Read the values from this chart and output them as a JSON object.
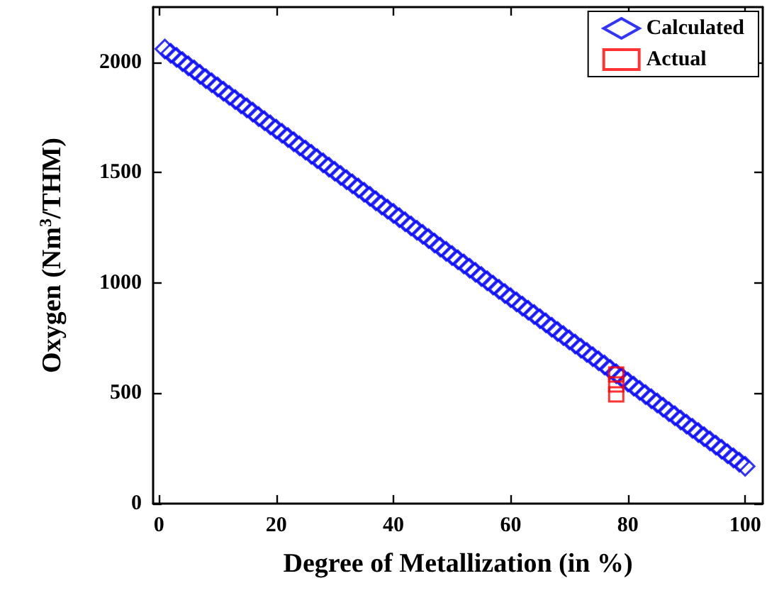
{
  "chart_data": {
    "type": "scatter",
    "xlabel": "Degree of Metallization (in %)",
    "ylabel": "Oxygen (Nm$^{3}$/THM)",
    "xlim": [
      -1,
      103
    ],
    "xticks": [
      0,
      20,
      40,
      60,
      80,
      100
    ],
    "ylim": [
      0,
      2250
    ],
    "yticks": [
      0,
      500,
      1000,
      1500,
      2000
    ],
    "grid": false,
    "legend": "top right",
    "series": [
      {
        "name": "Calculated",
        "color": "#0000ff",
        "marker": "diamond",
        "x": [
          1,
          2,
          3,
          4,
          5,
          6,
          7,
          8,
          9,
          10,
          11,
          12,
          13,
          14,
          15,
          16,
          17,
          18,
          19,
          20,
          21,
          22,
          23,
          24,
          25,
          26,
          27,
          28,
          29,
          30,
          31,
          32,
          33,
          34,
          35,
          36,
          37,
          38,
          39,
          40,
          41,
          42,
          43,
          44,
          45,
          46,
          47,
          48,
          49,
          50,
          51,
          52,
          53,
          54,
          55,
          56,
          57,
          58,
          59,
          60,
          61,
          62,
          63,
          64,
          65,
          66,
          67,
          68,
          69,
          70,
          71,
          72,
          73,
          74,
          75,
          76,
          77,
          78,
          79,
          80,
          81,
          82,
          83,
          84,
          85,
          86,
          87,
          88,
          89,
          90,
          91,
          92,
          93,
          94,
          95,
          96,
          97,
          98,
          99,
          100
        ],
        "values": [
          2060,
          2041,
          2022,
          2003,
          1984,
          1965,
          1945,
          1926,
          1907,
          1888,
          1869,
          1850,
          1831,
          1812,
          1793,
          1774,
          1754,
          1735,
          1716,
          1697,
          1678,
          1659,
          1640,
          1621,
          1602,
          1583,
          1563,
          1544,
          1525,
          1506,
          1487,
          1468,
          1449,
          1430,
          1411,
          1392,
          1372,
          1353,
          1334,
          1315,
          1296,
          1277,
          1258,
          1239,
          1220,
          1201,
          1181,
          1162,
          1143,
          1124,
          1105,
          1086,
          1067,
          1048,
          1029,
          1010,
          990,
          971,
          952,
          933,
          914,
          895,
          876,
          857,
          838,
          819,
          799,
          780,
          761,
          742,
          723,
          704,
          685,
          666,
          647,
          628,
          608,
          589,
          570,
          551,
          532,
          513,
          494,
          475,
          456,
          437,
          417,
          398,
          379,
          360,
          341,
          322,
          303,
          284,
          265,
          246,
          226,
          207,
          188,
          169
        ]
      },
      {
        "name": "Actual",
        "color": "#ff0000",
        "marker": "square",
        "x": [
          78,
          78,
          78
        ],
        "values": [
          585,
          540,
          495
        ]
      }
    ]
  }
}
